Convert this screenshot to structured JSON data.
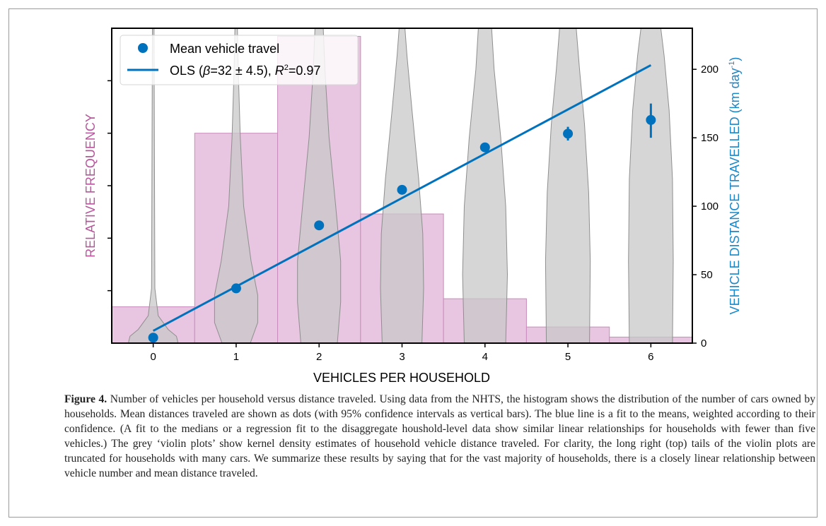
{
  "chart_data": {
    "type": "bar",
    "xlabel": "VEHICLES PER HOUSEHOLD",
    "ylabel_left": "RELATIVE FREQUENCY",
    "ylabel_right": "VEHICLE DISTANCE TRAVELLED (km day",
    "ylabel_right_sup": "-1",
    "ylabel_right_close": ")",
    "xlim": [
      -0.5,
      6.5
    ],
    "xticks": [
      0,
      1,
      2,
      3,
      4,
      5,
      6
    ],
    "y_right_lim": [
      0,
      230
    ],
    "y_right_ticks": [
      0,
      50,
      100,
      150,
      200
    ],
    "histogram": {
      "name": "",
      "categories": [
        0,
        1,
        2,
        3,
        4,
        5,
        6
      ],
      "relative_frequency": [
        0.09,
        0.52,
        0.76,
        0.32,
        0.11,
        0.04,
        0.015
      ],
      "ylim": [
        0,
        0.78
      ],
      "color": "#e8c5e0"
    },
    "means": {
      "name": "Mean vehicle travel",
      "x": [
        0,
        1,
        2,
        3,
        4,
        5,
        6
      ],
      "y": [
        4,
        40,
        86,
        112,
        143,
        153,
        163
      ],
      "ci_low": [
        3,
        38,
        84,
        110,
        141,
        148,
        150
      ],
      "ci_high": [
        5,
        42,
        88,
        114,
        145,
        158,
        175
      ],
      "color": "#0072bd"
    },
    "fit": {
      "name_prefix": "OLS (",
      "name_beta": "β",
      "name_beta_val": "=32 ± 4.5),  ",
      "name_r": "R",
      "name_r_sup": "2",
      "name_r_val": "=0.97",
      "x": [
        0,
        6
      ],
      "y": [
        9,
        203
      ],
      "color": "#0072bd"
    },
    "violins": {
      "color": "#c8c8c8",
      "x": [
        0,
        1,
        2,
        3,
        4,
        5,
        6
      ]
    },
    "legend_position": "top-left"
  },
  "caption": {
    "label": "Figure 4.",
    "text": " Number of vehicles per household versus distance traveled. Using data from the NHTS, the histogram shows the distribution of the number of cars owned by households. Mean distances traveled are shown as dots (with 95% confidence intervals as vertical bars). The blue line is a fit to the means, weighted according to their confidence. (A fit to the medians or a regression fit to the disaggregate houshold-level data show similar linear relationships for households with fewer than five vehicles.) The grey ‘violin plots’ show kernel density estimates of household vehicle distance traveled. For clarity, the long right (top) tails of the violin plots are truncated for households with many cars. We summarize these results by saying that for the vast majority of households, there is a closely linear relationship between vehicle number and mean distance traveled."
  }
}
